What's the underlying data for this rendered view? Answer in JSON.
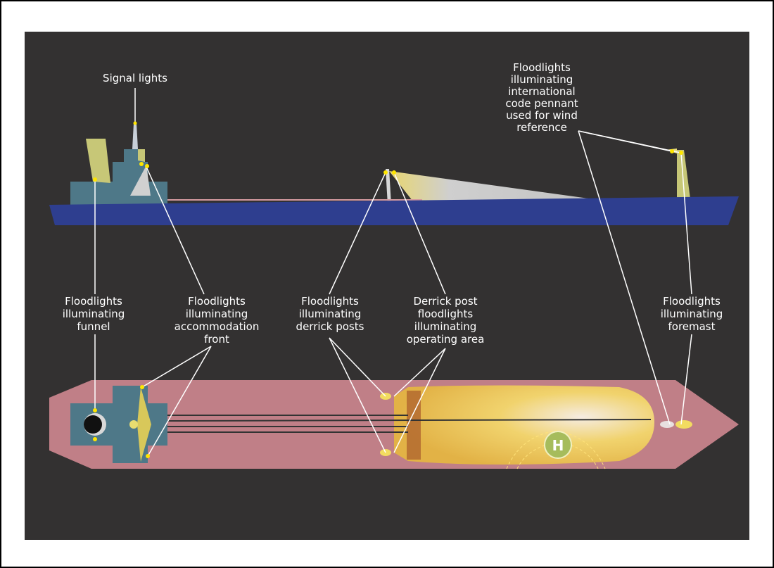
{
  "labels": {
    "signal_lights": {
      "lines": [
        "Signal lights"
      ]
    },
    "pennant": {
      "lines": [
        "Floodlights",
        "illuminating",
        "international",
        "code pennant",
        "used for wind",
        "reference"
      ]
    },
    "funnel": {
      "lines": [
        "Floodlights",
        "illuminating",
        "funnel"
      ]
    },
    "accommodation": {
      "lines": [
        "Floodlights",
        "illuminating",
        "accommodation",
        "front"
      ]
    },
    "derrick_posts": {
      "lines": [
        "Floodlights",
        "illuminating",
        "derrick posts"
      ]
    },
    "operating_area": {
      "lines": [
        "Derrick post",
        "floodlights",
        "illuminating",
        "operating area"
      ]
    },
    "foremast": {
      "lines": [
        "Floodlights",
        "illuminating",
        "foremast"
      ]
    }
  },
  "helipad": {
    "marker": "H"
  }
}
